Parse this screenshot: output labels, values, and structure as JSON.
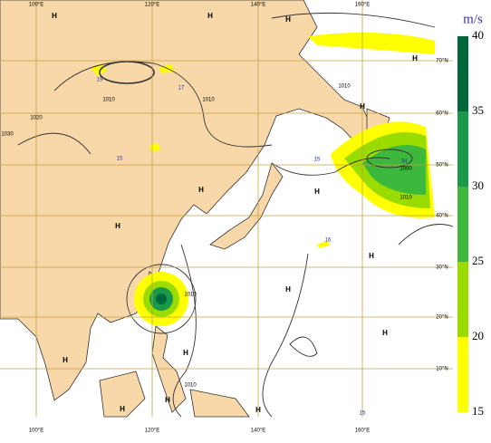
{
  "map": {
    "unit": "m/s",
    "longitudes": [
      "100°E",
      "120°E",
      "140°E",
      "160°E"
    ],
    "latitudes": [
      "70°N",
      "60°N",
      "50°N",
      "40°N",
      "30°N",
      "20°N",
      "10°N"
    ],
    "colorbar": {
      "levels": [
        15,
        20,
        25,
        30,
        35,
        40
      ],
      "colors": [
        "#ffff00",
        "#9bdc00",
        "#3cb83c",
        "#1a9a48",
        "#00683a"
      ]
    },
    "isobar_labels": [
      "1030",
      "1020",
      "1010",
      "1010",
      "1010",
      "1000",
      "1010",
      "1010",
      "1010"
    ],
    "highs": [
      "H",
      "H",
      "H",
      "H",
      "H",
      "H",
      "H",
      "H",
      "H",
      "H",
      "H",
      "H",
      "H",
      "H",
      "H",
      "H"
    ],
    "speed_labels": [
      "19",
      "17",
      "15",
      "15",
      "16",
      "34",
      "15"
    ]
  }
}
